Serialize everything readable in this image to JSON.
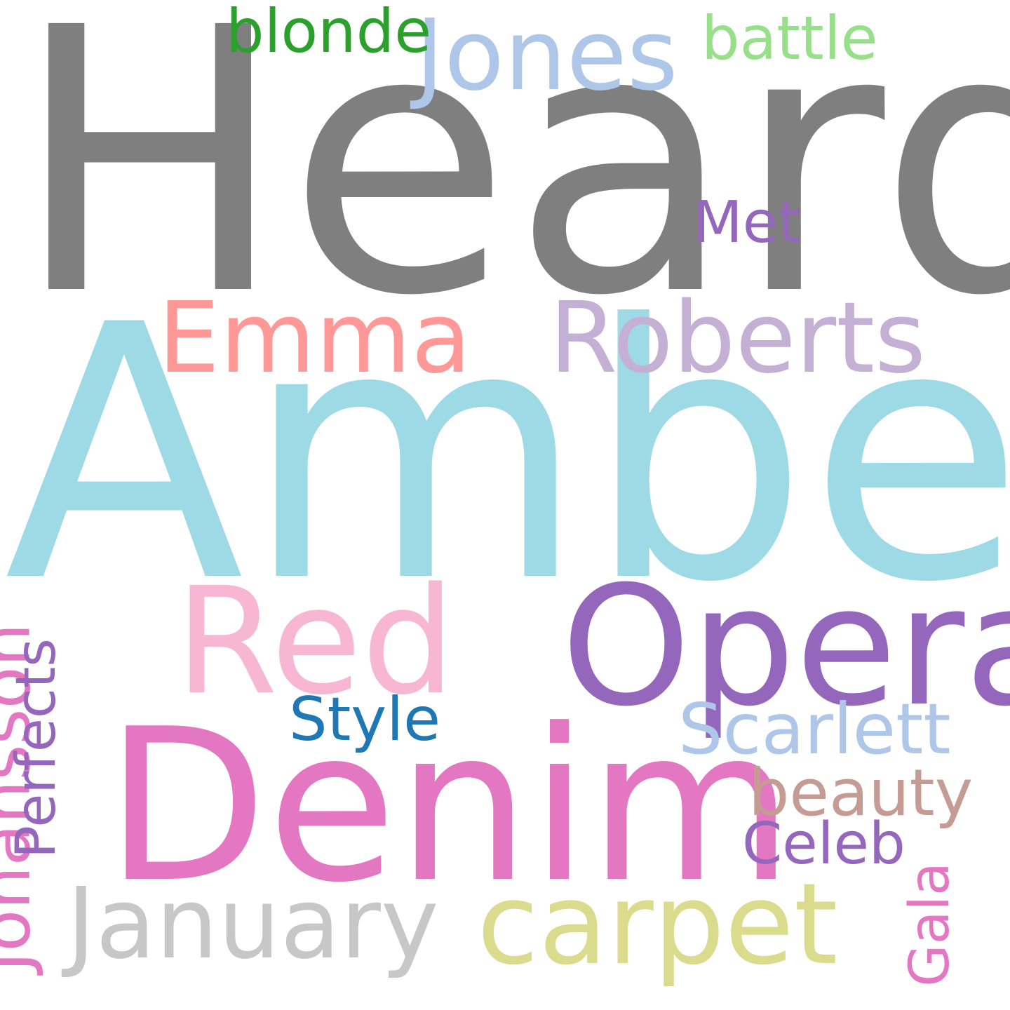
{
  "words": [
    {
      "key": "heard",
      "text": "Heard",
      "color": "#7f7f7f"
    },
    {
      "key": "amber",
      "text": "Amber",
      "color": "#9edae5"
    },
    {
      "key": "denim",
      "text": "Denim",
      "color": "#e377c2"
    },
    {
      "key": "opera",
      "text": "Opera",
      "color": "#9467bd"
    },
    {
      "key": "red",
      "text": "Red",
      "color": "#f7b6d2"
    },
    {
      "key": "carpet",
      "text": "carpet",
      "color": "#dbdb8d"
    },
    {
      "key": "january",
      "text": "January",
      "color": "#c7c7c7"
    },
    {
      "key": "roberts",
      "text": "Roberts",
      "color": "#c5b0d5"
    },
    {
      "key": "emma",
      "text": "Emma",
      "color": "#ff9896"
    },
    {
      "key": "jones",
      "text": "Jones",
      "color": "#aec7e8"
    },
    {
      "key": "scarlett",
      "text": "Scarlett",
      "color": "#aec7e8"
    },
    {
      "key": "johansson",
      "text": "Johansson",
      "color": "#e377c2"
    },
    {
      "key": "battle",
      "text": "battle",
      "color": "#98df8a"
    },
    {
      "key": "blonde",
      "text": "blonde",
      "color": "#2ca02c"
    },
    {
      "key": "beauty",
      "text": "beauty",
      "color": "#c49c94"
    },
    {
      "key": "perfects",
      "text": "Perfects",
      "color": "#9467bd"
    },
    {
      "key": "style",
      "text": "Style",
      "color": "#1f77b4"
    },
    {
      "key": "celeb",
      "text": "Celeb",
      "color": "#9467bd"
    },
    {
      "key": "met",
      "text": "Met",
      "color": "#9467bd"
    },
    {
      "key": "gala",
      "text": "Gala",
      "color": "#e377c2"
    }
  ]
}
